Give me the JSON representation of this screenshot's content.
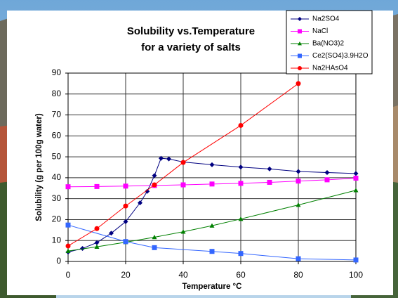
{
  "chart_data": {
    "type": "line",
    "title": "Solubility vs.Temperature",
    "subtitle": "for a variety of salts",
    "x_label": "Temperature °C",
    "y_label": "Solubility (g per 100g water)",
    "xlim": [
      0,
      100
    ],
    "xticks": [
      0,
      20,
      40,
      60,
      80,
      100
    ],
    "ylim": [
      0,
      90
    ],
    "yticks": [
      0,
      10,
      20,
      30,
      40,
      50,
      60,
      70,
      80,
      90
    ],
    "grid": true,
    "legend": "top-right",
    "series": [
      {
        "name": "Na2SO4",
        "color": "#000080",
        "marker": "diamond",
        "x": [
          0,
          5,
          10,
          15,
          20,
          25,
          27.5,
          30,
          32.3,
          35,
          40,
          50,
          60,
          70,
          80,
          90,
          100
        ],
        "values": [
          4.5,
          6.2,
          9,
          13.5,
          19,
          28,
          33.5,
          41,
          49.3,
          49,
          47.5,
          46.2,
          45.1,
          44.2,
          43,
          42.5,
          42
        ]
      },
      {
        "name": "NaCl",
        "color": "#ff00ff",
        "marker": "square",
        "x": [
          0,
          10,
          20,
          30,
          40,
          50,
          60,
          70,
          80,
          90,
          100
        ],
        "values": [
          35.7,
          35.8,
          36,
          36.3,
          36.6,
          37,
          37.3,
          37.8,
          38.4,
          39,
          39.8
        ]
      },
      {
        "name": "Ba(NO3)2",
        "color": "#008000",
        "marker": "triangle",
        "x": [
          0,
          10,
          20,
          30,
          40,
          50,
          60,
          80,
          100
        ],
        "values": [
          5,
          7,
          9.2,
          11.6,
          14.2,
          17.1,
          20.3,
          27,
          34
        ]
      },
      {
        "name": "Ce2(SO4)3.9H2O",
        "color": "#3366ff",
        "marker": "square",
        "x": [
          0,
          20,
          30,
          50,
          60,
          80,
          100
        ],
        "values": [
          17.4,
          9.5,
          6.6,
          4.8,
          3.8,
          1.3,
          0.7
        ]
      },
      {
        "name": "Na2HAsO4",
        "color": "#ff0000",
        "marker": "circle",
        "x": [
          0,
          10,
          20,
          30,
          40,
          60,
          80
        ],
        "values": [
          7.4,
          15.7,
          26.5,
          36.6,
          47.3,
          65,
          85
        ]
      }
    ]
  }
}
